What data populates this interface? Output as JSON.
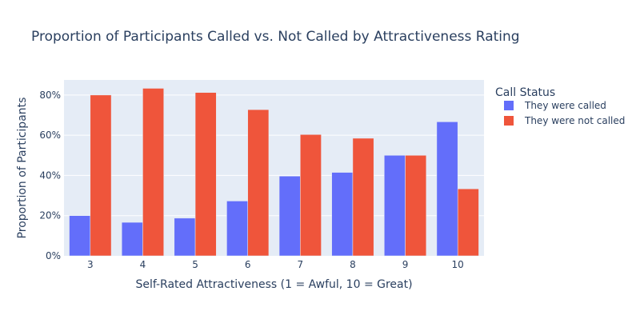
{
  "chart_data": {
    "type": "bar",
    "title": "Proportion of Participants Called vs. Not Called by Attractiveness Rating",
    "xlabel": "Self-Rated Attractiveness (1 = Awful, 10 = Great)",
    "ylabel": "Proportion of Participants",
    "categories": [
      "3",
      "4",
      "5",
      "6",
      "7",
      "8",
      "9",
      "10"
    ],
    "series": [
      {
        "name": "They were called",
        "color": "#636efa",
        "values": [
          0.2,
          0.1667,
          0.1875,
          0.2727,
          0.3966,
          0.4151,
          0.5,
          0.6667
        ]
      },
      {
        "name": "They were not called",
        "color": "#ef553b",
        "values": [
          0.8,
          0.8333,
          0.8125,
          0.7273,
          0.6034,
          0.5849,
          0.5,
          0.3333
        ]
      }
    ],
    "ylim": [
      0,
      0.875
    ],
    "yticks": [
      0,
      0.2,
      0.4,
      0.6,
      0.8
    ],
    "ytick_labels": [
      "0%",
      "20%",
      "40%",
      "60%",
      "80%"
    ],
    "legend_title": "Call Status",
    "legend_position": "right",
    "grid": true,
    "plot_background": "#e5ecf6"
  }
}
